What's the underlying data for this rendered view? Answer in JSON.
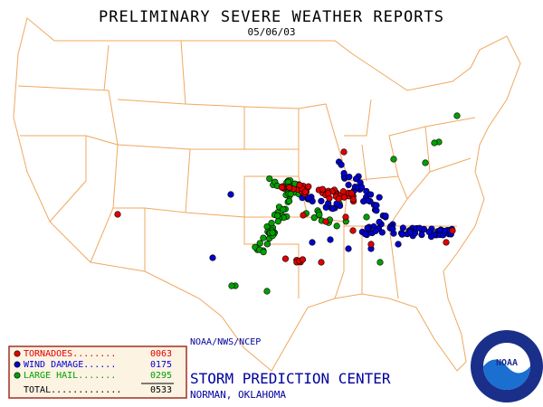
{
  "header": {
    "title": "PRELIMINARY SEVERE WEATHER REPORTS",
    "date": "05/06/03"
  },
  "legend": {
    "entries": [
      {
        "label": "TORNADOES........",
        "count": "0063",
        "color": "#e00000"
      },
      {
        "label": "WIND DAMAGE......",
        "count": "0175",
        "color": "#0000d0"
      },
      {
        "label": "LARGE HAIL.......",
        "count": "0295",
        "color": "#00a000"
      }
    ],
    "total_label": "TOTAL.............",
    "total": "0533"
  },
  "footer": {
    "agency": "NOAA/NWS/NCEP",
    "center": "STORM PREDICTION CENTER",
    "location": "NORMAN, OKLAHOMA",
    "logo": "NOAA"
  }
}
